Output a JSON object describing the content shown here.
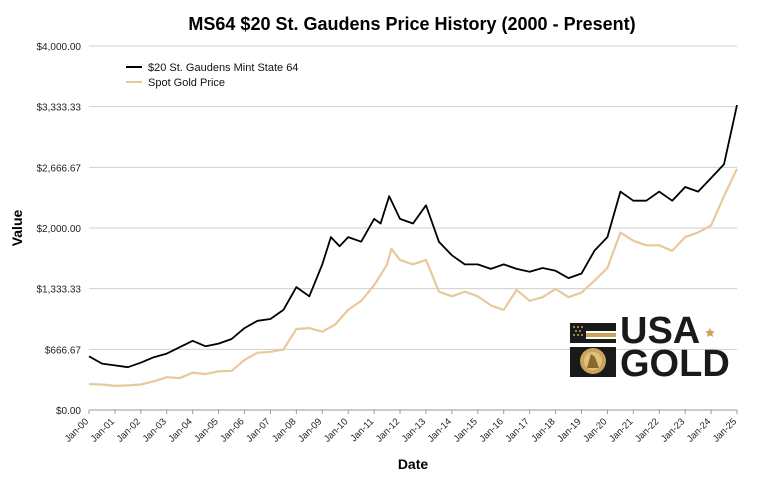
{
  "chart_data": {
    "type": "line",
    "title": "MS64 $20 St. Gaudens Price History (2000 - Present)",
    "xlabel": "Date",
    "ylabel": "Value",
    "ylim": [
      0,
      4000
    ],
    "yticks": [
      {
        "value": 0,
        "label": "$0.00"
      },
      {
        "value": 666.67,
        "label": "$666.67"
      },
      {
        "value": 1333.33,
        "label": "$1,333.33"
      },
      {
        "value": 2000,
        "label": "$2,000.00"
      },
      {
        "value": 2666.67,
        "label": "$2,666.67"
      },
      {
        "value": 3333.33,
        "label": "$3,333.33"
      },
      {
        "value": 4000,
        "label": "$4,000.00"
      }
    ],
    "xlim": [
      "Jan-00",
      "Jan-25"
    ],
    "categories": [
      "Jan-00",
      "Jan-01",
      "Jan-02",
      "Jan-03",
      "Jan-04",
      "Jan-05",
      "Jan-06",
      "Jan-07",
      "Jan-08",
      "Jan-09",
      "Jan-10",
      "Jan-11",
      "Jan-12",
      "Jan-13",
      "Jan-14",
      "Jan-15",
      "Jan-16",
      "Jan-17",
      "Jan-18",
      "Jan-19",
      "Jan-20",
      "Jan-21",
      "Jan-22",
      "Jan-23",
      "Jan-24",
      "Jan-25"
    ],
    "grid": "horizontal",
    "legend_position": "top-left",
    "series": [
      {
        "name": "$20 St. Gaudens Mint State 64",
        "color": "#000000",
        "x": [
          "Jan-00",
          "Jul-00",
          "Jan-01",
          "Jul-01",
          "Jan-02",
          "Jul-02",
          "Jan-03",
          "Jul-03",
          "Jan-04",
          "Jul-04",
          "Jan-05",
          "Jul-05",
          "Jan-06",
          "Jul-06",
          "Jan-07",
          "Jul-07",
          "Jan-08",
          "Jul-08",
          "Jan-09",
          "May-09",
          "Sep-09",
          "Jan-10",
          "Jul-10",
          "Jan-11",
          "Apr-11",
          "Aug-11",
          "Jan-12",
          "Jul-12",
          "Jan-13",
          "Jul-13",
          "Jan-14",
          "Jul-14",
          "Jan-15",
          "Jul-15",
          "Jan-16",
          "Jul-16",
          "Jan-17",
          "Jul-17",
          "Jan-18",
          "Jul-18",
          "Jan-19",
          "Jul-19",
          "Jan-20",
          "Jul-20",
          "Jan-21",
          "Jul-21",
          "Jan-22",
          "Jul-22",
          "Jan-23",
          "Jul-23",
          "Jan-24",
          "Jul-24",
          "Jan-25"
        ],
        "values": [
          590,
          510,
          490,
          470,
          520,
          580,
          620,
          690,
          760,
          700,
          730,
          780,
          900,
          980,
          1000,
          1100,
          1350,
          1250,
          1600,
          1900,
          1800,
          1900,
          1850,
          2100,
          2050,
          2350,
          2100,
          2050,
          2250,
          1850,
          1700,
          1600,
          1600,
          1550,
          1600,
          1550,
          1520,
          1560,
          1530,
          1450,
          1500,
          1750,
          1900,
          2400,
          2300,
          2300,
          2400,
          2300,
          2450,
          2400,
          2550,
          2700,
          3350
        ]
      },
      {
        "name": "Spot Gold Price",
        "color": "#e8c99a",
        "x": [
          "Jan-00",
          "Jul-00",
          "Jan-01",
          "Jul-01",
          "Jan-02",
          "Jul-02",
          "Jan-03",
          "Jul-03",
          "Jan-04",
          "Jul-04",
          "Jan-05",
          "Jul-05",
          "Jan-06",
          "Jul-06",
          "Jan-07",
          "Jul-07",
          "Jan-08",
          "Jul-08",
          "Jan-09",
          "Jul-09",
          "Jan-10",
          "Jul-10",
          "Jan-11",
          "Jul-11",
          "Sep-11",
          "Jan-12",
          "Jul-12",
          "Jan-13",
          "Jul-13",
          "Jan-14",
          "Jul-14",
          "Jan-15",
          "Jul-15",
          "Jan-16",
          "Jul-16",
          "Jan-17",
          "Jul-17",
          "Jan-18",
          "Jul-18",
          "Jan-19",
          "Jul-19",
          "Jan-20",
          "Jul-20",
          "Jan-21",
          "Jul-21",
          "Jan-22",
          "Jul-22",
          "Jan-23",
          "Jul-23",
          "Jan-24",
          "Jul-24",
          "Jan-25"
        ],
        "values": [
          285,
          280,
          265,
          270,
          280,
          315,
          360,
          350,
          410,
          395,
          425,
          430,
          550,
          630,
          640,
          665,
          890,
          900,
          860,
          940,
          1100,
          1200,
          1370,
          1600,
          1770,
          1650,
          1600,
          1650,
          1300,
          1250,
          1300,
          1250,
          1150,
          1100,
          1320,
          1200,
          1240,
          1330,
          1240,
          1290,
          1420,
          1560,
          1950,
          1860,
          1810,
          1810,
          1750,
          1900,
          1950,
          2030,
          2350,
          2650
        ]
      }
    ]
  },
  "logo": {
    "line1": "USA",
    "line2": "GOLD"
  }
}
